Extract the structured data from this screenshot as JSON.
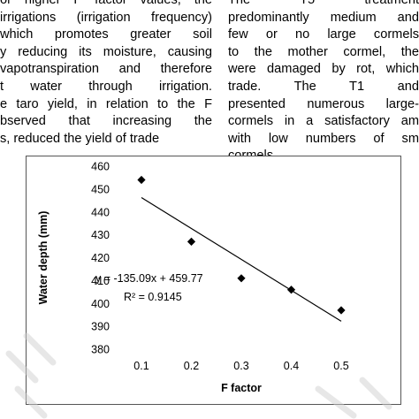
{
  "text_left": [
    "or higher F factor values, the",
    "irrigations (irrigation frequency)",
    "which promotes greater soil",
    "y reducing its moisture, causing",
    "vapotranspiration and therefore",
    "t water through irrigation.",
    "e taro yield, in relation to the F",
    "bserved that increasing the",
    "s, reduced the yield of trade"
  ],
  "text_right": [
    "The T5 treatment",
    "predominantly medium and",
    "few or no large cormels",
    "to the mother cormel, the",
    "were damaged by rot, which",
    "trade. The T1 and",
    "presented numerous large-",
    "cormels in a satisfactory am",
    "with low numbers of sm",
    "cormels."
  ],
  "chart_data": {
    "type": "scatter",
    "x": [
      0.1,
      0.2,
      0.3,
      0.4,
      0.5
    ],
    "y": [
      454,
      427,
      411,
      406,
      397
    ],
    "trendline": {
      "slope": -135.09,
      "intercept": 459.77
    },
    "equation": "y = -135.09x + 459.77",
    "r2": "R² = 0.9145",
    "xlabel": "F factor",
    "ylabel": "Water depth (mm)",
    "xticks": [
      "0.1",
      "0.2",
      "0.3",
      "0.4",
      "0.5"
    ],
    "yticks": [
      "380",
      "390",
      "400",
      "410",
      "420",
      "430",
      "440",
      "450",
      "460"
    ],
    "xlim": [
      0.1,
      0.5
    ],
    "ylim": [
      380,
      460
    ],
    "grid": false,
    "marker": "diamond",
    "colors": {
      "marker": "#000000",
      "line": "#000000"
    }
  }
}
